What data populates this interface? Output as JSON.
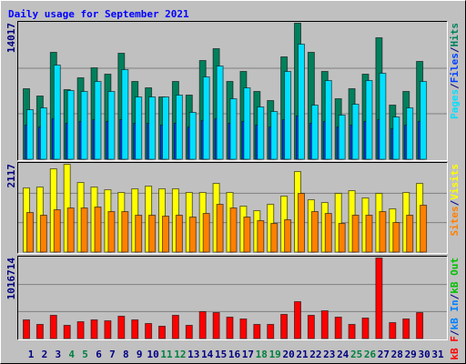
{
  "chart_data": [
    {
      "type": "bar",
      "title": "Daily usage for September 2021",
      "legend_separator": "/",
      "ylim": [
        0,
        14017
      ],
      "yticks": [
        14017
      ],
      "series": [
        {
          "name": "Hits",
          "color": "#00805c",
          "values": [
            7289,
            6541,
            11027,
            7196,
            8410,
            9438,
            8784,
            10933,
            8036,
            7382,
            6448,
            8036,
            6635,
            10186,
            11401,
            8036,
            9064,
            7009,
            6074,
            10560,
            14017,
            11027,
            9064,
            6261,
            7289,
            8784,
            12522,
            5607,
            7009,
            10093,
            null
          ]
        },
        {
          "name": "Files",
          "color": "#0040ff",
          "values": [
            3551,
            3364,
            4205,
            3738,
            3925,
            4112,
            3925,
            4112,
            3738,
            3738,
            3551,
            3738,
            3364,
            4018,
            4205,
            3738,
            3925,
            3551,
            3364,
            4112,
            4486,
            3738,
            3925,
            3364,
            3551,
            3925,
            4112,
            3177,
            3551,
            3925,
            null
          ]
        },
        {
          "name": "Pages",
          "color": "#00e0ff",
          "values": [
            5140,
            5327,
            9719,
            7102,
            7009,
            8037,
            7009,
            9252,
            6448,
            6448,
            6448,
            6635,
            4859,
            8504,
            9625,
            6261,
            7383,
            5420,
            4953,
            9065,
            11868,
            5607,
            8130,
            4579,
            5700,
            8130,
            8878,
            4392,
            5327,
            8037,
            null
          ]
        }
      ]
    },
    {
      "type": "bar",
      "legend_separator": "/",
      "ylim": [
        0,
        2117
      ],
      "yticks": [
        2117
      ],
      "series": [
        {
          "name": "Visits",
          "color": "#ffff00",
          "values": [
            1549,
            1571,
            2008,
            2117,
            1680,
            1571,
            1506,
            1440,
            1528,
            1593,
            1528,
            1528,
            1440,
            1440,
            1659,
            1440,
            1113,
            1004,
            1157,
            1353,
            1942,
            1266,
            1200,
            1419,
            1484,
            1309,
            1419,
            1048,
            1440,
            1659,
            null
          ]
        },
        {
          "name": "Sites",
          "color": "#ff8000",
          "values": [
            960,
            895,
            1026,
            1069,
            1069,
            1091,
            982,
            982,
            895,
            895,
            873,
            895,
            851,
            938,
            1156,
            1069,
            851,
            764,
            698,
            786,
            1418,
            982,
            938,
            698,
            895,
            895,
            982,
            720,
            895,
            1135,
            null
          ]
        }
      ]
    },
    {
      "type": "bar",
      "legend_separator": "/",
      "ylim": [
        0,
        1016714
      ],
      "yticks": [
        1016714
      ],
      "categories": [
        "1",
        "2",
        "3",
        "4",
        "5",
        "6",
        "7",
        "8",
        "9",
        "10",
        "11",
        "12",
        "13",
        "14",
        "15",
        "16",
        "17",
        "18",
        "19",
        "20",
        "21",
        "22",
        "23",
        "24",
        "25",
        "26",
        "27",
        "28",
        "29",
        "30",
        "31"
      ],
      "category_colors": [
        "#000080",
        "#000080",
        "#000080",
        "#008040",
        "#008040",
        "#000080",
        "#000080",
        "#000080",
        "#000080",
        "#000080",
        "#008040",
        "#008040",
        "#000080",
        "#000080",
        "#000080",
        "#000080",
        "#000080",
        "#008040",
        "#008040",
        "#000080",
        "#000080",
        "#000080",
        "#000080",
        "#000080",
        "#008040",
        "#008040",
        "#000080",
        "#000080",
        "#000080",
        "#000080",
        "#000080"
      ],
      "series": [
        {
          "name": "kB Out",
          "color": "#00c000",
          "values": [
            null,
            null,
            null,
            null,
            null,
            null,
            null,
            null,
            null,
            null,
            null,
            null,
            null,
            null,
            null,
            null,
            null,
            null,
            null,
            null,
            null,
            null,
            null,
            null,
            null,
            null,
            null,
            null,
            null,
            null,
            null
          ]
        },
        {
          "name": "kB In",
          "color": "#0080ff",
          "values": [
            null,
            null,
            null,
            null,
            null,
            null,
            null,
            null,
            null,
            null,
            null,
            null,
            null,
            null,
            null,
            null,
            null,
            null,
            null,
            null,
            null,
            null,
            null,
            null,
            null,
            null,
            null,
            null,
            null,
            null,
            null
          ]
        },
        {
          "name": "kB F",
          "color": "#ff0000",
          "values": [
            239904,
            182784,
            297024,
            171360,
            217056,
            239904,
            228480,
            285600,
            239904,
            194208,
            159936,
            297024,
            171360,
            342720,
            331296,
            274176,
            251328,
            182784,
            182784,
            308448,
            468384,
            297024,
            354144,
            274176,
            182784,
            262752,
            1016714,
            205632,
            251328,
            331296,
            null
          ]
        }
      ]
    }
  ]
}
